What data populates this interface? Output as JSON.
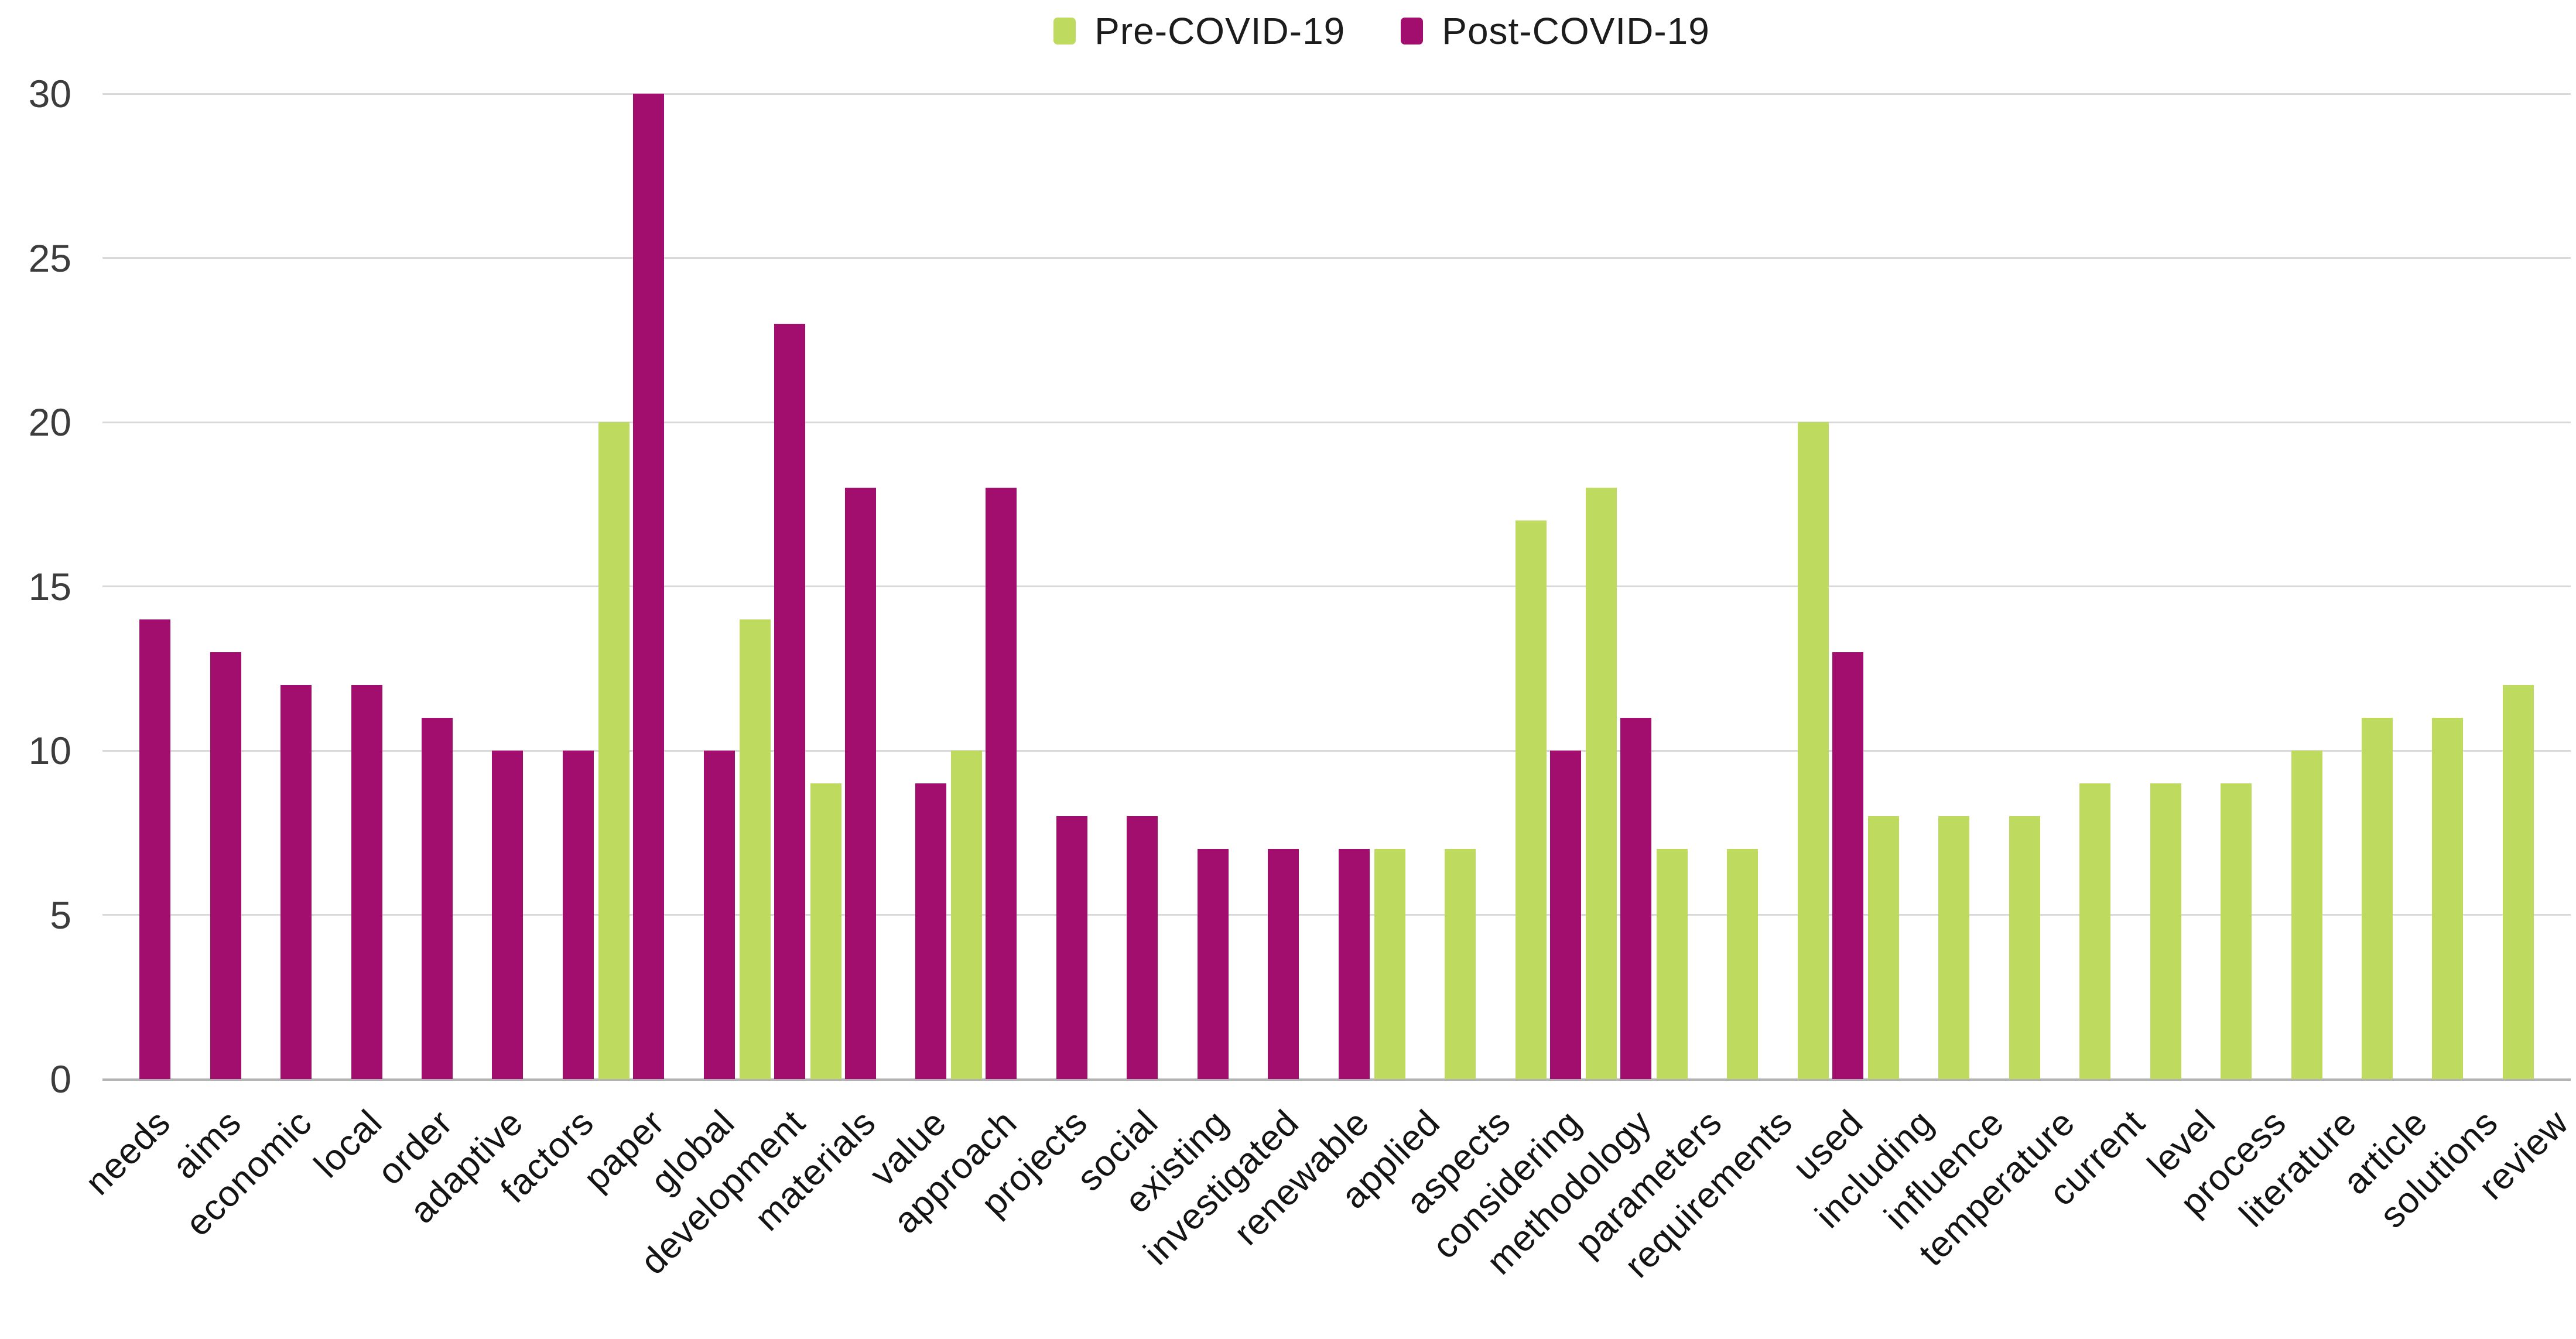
{
  "chart_data": {
    "type": "bar",
    "title": "",
    "categories": [
      "needs",
      "aims",
      "economic",
      "local",
      "order",
      "adaptive",
      "factors",
      "paper",
      "global",
      "development",
      "materials",
      "value",
      "approach",
      "projects",
      "social",
      "existing",
      "investigated",
      "renewable",
      "applied",
      "aspects",
      "considering",
      "methodology",
      "parameters",
      "requirements",
      "used",
      "including",
      "influence",
      "temperature",
      "current",
      "level",
      "process",
      "literature",
      "article",
      "solutions",
      "review"
    ],
    "series": [
      {
        "name": "Pre-COVID-19",
        "color": "#bedb5f",
        "values": [
          null,
          null,
          null,
          null,
          null,
          null,
          null,
          20,
          null,
          14,
          9,
          null,
          10,
          null,
          null,
          null,
          null,
          null,
          7,
          7,
          17,
          18,
          7,
          7,
          20,
          8,
          8,
          8,
          9,
          9,
          9,
          10,
          11,
          11,
          12
        ]
      },
      {
        "name": "Post-COVID-19",
        "color": "#a10e6d",
        "values": [
          14,
          13,
          12,
          12,
          11,
          10,
          10,
          30,
          10,
          23,
          18,
          9,
          18,
          8,
          8,
          7,
          7,
          7,
          null,
          null,
          10,
          11,
          null,
          null,
          13,
          null,
          null,
          null,
          null,
          null,
          null,
          null,
          null,
          null,
          null
        ]
      }
    ],
    "xlabel": "",
    "ylabel": "",
    "ylim": [
      0,
      30
    ],
    "yticks": [
      0,
      5,
      10,
      15,
      20,
      25,
      30
    ],
    "grid": true,
    "legend_position": "top"
  },
  "colors": {
    "gridline": "#d9d9d9",
    "axis_line": "#b3b3b3",
    "background": "#ffffff"
  }
}
